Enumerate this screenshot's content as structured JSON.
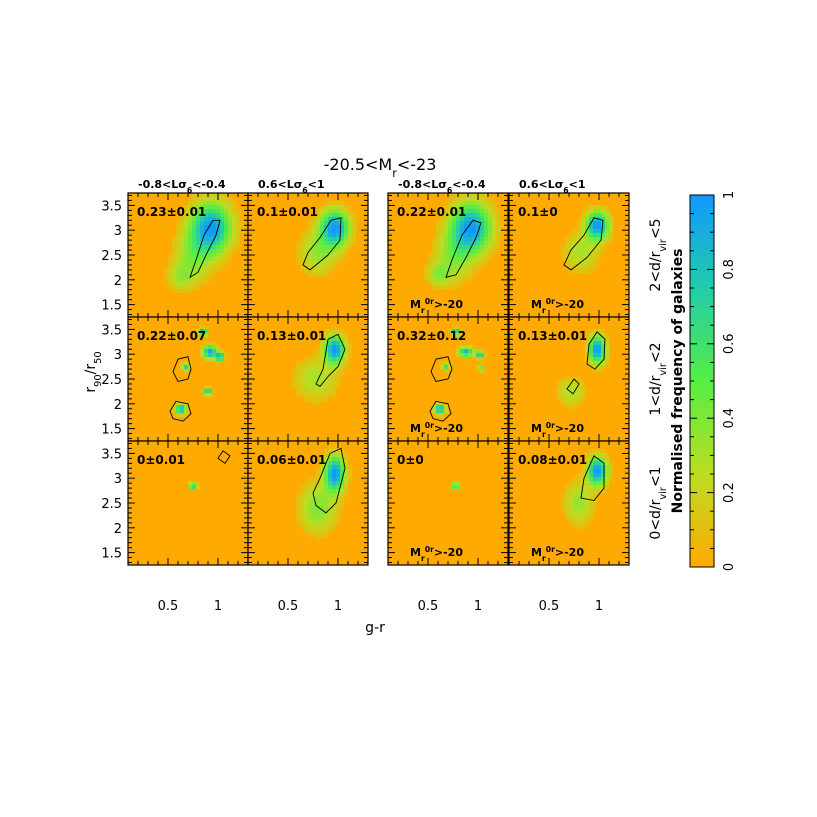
{
  "chart_data": {
    "type": "heatmap",
    "title": "-20.5<M_r<-23",
    "xlabel": "g-r",
    "ylabel": "r_90/r_50",
    "colorbar_label": "Normalised frequency of galaxies",
    "colorbar_ticks": [
      "0",
      "0.2",
      "0.4",
      "0.6",
      "0.8",
      "1"
    ],
    "colorbar_range": [
      0,
      1
    ],
    "colors": {
      "low": "#ffaa00",
      "mid": "#55ee44",
      "high": "#1199ff"
    },
    "xlim": [
      0.1,
      1.3
    ],
    "ylim": [
      1.25,
      3.75
    ],
    "xticks": [
      "0.5",
      "1"
    ],
    "yticks": [
      "1.5",
      "2",
      "2.5",
      "3",
      "3.5"
    ],
    "column_headers": [
      "-0.8<Lσ_6<-0.4",
      "0.6<Lσ_6<1",
      "-0.8<Lσ_6<-0.4",
      "0.6<Lσ_6<1"
    ],
    "row_labels": [
      "2<d/r_vir<5",
      "1<d/r_vir<2",
      "0<d/r_vir<1"
    ],
    "sample_label": "M_r^0r>-20",
    "panels": [
      {
        "row": 0,
        "col": 0,
        "fraction": "0.23±0.01",
        "sample_note": "",
        "blobs": [
          {
            "x": 0.93,
            "y": 3.05,
            "sx": 0.14,
            "sy": 0.35,
            "w": 1.0
          },
          {
            "x": 0.75,
            "y": 2.45,
            "sx": 0.13,
            "sy": 0.35,
            "w": 0.35
          },
          {
            "x": 0.62,
            "y": 2.05,
            "sx": 0.09,
            "sy": 0.18,
            "w": 0.25
          }
        ],
        "contour": [
          [
            0.72,
            2.05
          ],
          [
            0.78,
            2.4
          ],
          [
            0.86,
            2.9
          ],
          [
            0.95,
            3.2
          ],
          [
            1.02,
            3.2
          ],
          [
            0.98,
            2.9
          ],
          [
            0.88,
            2.5
          ],
          [
            0.8,
            2.15
          ]
        ]
      },
      {
        "row": 0,
        "col": 1,
        "fraction": "0.1±0.01",
        "sample_note": "",
        "blobs": [
          {
            "x": 0.97,
            "y": 3.05,
            "sx": 0.1,
            "sy": 0.25,
            "w": 1.0
          },
          {
            "x": 0.8,
            "y": 2.55,
            "sx": 0.13,
            "sy": 0.3,
            "w": 0.35
          }
        ],
        "contour": [
          [
            0.65,
            2.3
          ],
          [
            0.7,
            2.55
          ],
          [
            0.82,
            2.85
          ],
          [
            0.93,
            3.2
          ],
          [
            1.03,
            3.25
          ],
          [
            1.02,
            2.8
          ],
          [
            0.9,
            2.5
          ],
          [
            0.72,
            2.2
          ]
        ]
      },
      {
        "row": 0,
        "col": 2,
        "fraction": "0.22±0.01",
        "sample_note": "M_r^0r>-20",
        "blobs": [
          {
            "x": 0.93,
            "y": 3.05,
            "sx": 0.14,
            "sy": 0.35,
            "w": 1.0
          },
          {
            "x": 0.75,
            "y": 2.45,
            "sx": 0.13,
            "sy": 0.35,
            "w": 0.35
          },
          {
            "x": 0.6,
            "y": 2.1,
            "sx": 0.08,
            "sy": 0.15,
            "w": 0.3
          }
        ],
        "contour": [
          [
            0.68,
            2.05
          ],
          [
            0.74,
            2.4
          ],
          [
            0.84,
            2.9
          ],
          [
            0.95,
            3.2
          ],
          [
            1.03,
            3.15
          ],
          [
            0.98,
            2.85
          ],
          [
            0.88,
            2.45
          ],
          [
            0.78,
            2.1
          ]
        ]
      },
      {
        "row": 0,
        "col": 3,
        "fraction": "0.1±0",
        "sample_note": "M_r^0r>-20",
        "blobs": [
          {
            "x": 0.98,
            "y": 3.1,
            "sx": 0.08,
            "sy": 0.2,
            "w": 1.0
          },
          {
            "x": 0.82,
            "y": 2.55,
            "sx": 0.12,
            "sy": 0.28,
            "w": 0.3
          }
        ],
        "contour": [
          [
            0.65,
            2.3
          ],
          [
            0.72,
            2.6
          ],
          [
            0.85,
            2.9
          ],
          [
            0.95,
            3.25
          ],
          [
            1.04,
            3.2
          ],
          [
            1.02,
            2.8
          ],
          [
            0.88,
            2.45
          ],
          [
            0.72,
            2.2
          ]
        ]
      },
      {
        "row": 1,
        "col": 0,
        "fraction": "0.22±0.07",
        "sample_note": "",
        "blobs": [
          {
            "x": 0.92,
            "y": 3.05,
            "sx": 0.05,
            "sy": 0.09,
            "w": 0.95
          },
          {
            "x": 0.85,
            "y": 3.45,
            "sx": 0.03,
            "sy": 0.05,
            "w": 0.95
          },
          {
            "x": 1.02,
            "y": 2.95,
            "sx": 0.03,
            "sy": 0.06,
            "w": 0.9
          },
          {
            "x": 0.68,
            "y": 2.75,
            "sx": 0.03,
            "sy": 0.05,
            "w": 0.7
          },
          {
            "x": 0.9,
            "y": 2.25,
            "sx": 0.03,
            "sy": 0.05,
            "w": 0.8
          },
          {
            "x": 0.63,
            "y": 1.9,
            "sx": 0.04,
            "sy": 0.07,
            "w": 0.9
          }
        ],
        "contour": [
          [
            0.55,
            2.65
          ],
          [
            0.6,
            2.9
          ],
          [
            0.7,
            2.95
          ],
          [
            0.73,
            2.7
          ],
          [
            0.7,
            2.5
          ],
          [
            0.6,
            2.45
          ]
        ],
        "contour2": [
          [
            0.52,
            1.85
          ],
          [
            0.58,
            2.05
          ],
          [
            0.7,
            2.0
          ],
          [
            0.73,
            1.8
          ],
          [
            0.65,
            1.65
          ],
          [
            0.55,
            1.7
          ]
        ]
      },
      {
        "row": 1,
        "col": 1,
        "fraction": "0.13±0.01",
        "sample_note": "",
        "blobs": [
          {
            "x": 0.97,
            "y": 3.1,
            "sx": 0.07,
            "sy": 0.2,
            "w": 1.0
          },
          {
            "x": 0.78,
            "y": 2.5,
            "sx": 0.15,
            "sy": 0.3,
            "w": 0.3
          }
        ],
        "contour": [
          [
            0.78,
            2.4
          ],
          [
            0.85,
            2.7
          ],
          [
            0.9,
            3.3
          ],
          [
            1.0,
            3.4
          ],
          [
            1.07,
            3.1
          ],
          [
            1.0,
            2.75
          ],
          [
            0.9,
            2.55
          ],
          [
            0.82,
            2.35
          ]
        ]
      },
      {
        "row": 1,
        "col": 2,
        "fraction": "0.32±0.12",
        "sample_note": "M_r^0r>-20",
        "blobs": [
          {
            "x": 0.88,
            "y": 3.05,
            "sx": 0.05,
            "sy": 0.07,
            "w": 0.85
          },
          {
            "x": 0.78,
            "y": 3.45,
            "sx": 0.03,
            "sy": 0.05,
            "w": 0.9
          },
          {
            "x": 1.02,
            "y": 3.0,
            "sx": 0.03,
            "sy": 0.05,
            "w": 0.85
          },
          {
            "x": 1.03,
            "y": 2.72,
            "sx": 0.025,
            "sy": 0.04,
            "w": 0.5
          },
          {
            "x": 0.68,
            "y": 2.75,
            "sx": 0.03,
            "sy": 0.05,
            "w": 0.6
          },
          {
            "x": 0.62,
            "y": 1.9,
            "sx": 0.04,
            "sy": 0.07,
            "w": 0.9
          }
        ],
        "contour": [
          [
            0.53,
            2.65
          ],
          [
            0.58,
            2.9
          ],
          [
            0.7,
            2.95
          ],
          [
            0.74,
            2.7
          ],
          [
            0.7,
            2.5
          ],
          [
            0.58,
            2.45
          ]
        ],
        "contour2": [
          [
            0.52,
            1.85
          ],
          [
            0.58,
            2.05
          ],
          [
            0.7,
            2.0
          ],
          [
            0.73,
            1.8
          ],
          [
            0.65,
            1.65
          ],
          [
            0.55,
            1.7
          ]
        ]
      },
      {
        "row": 1,
        "col": 3,
        "fraction": "0.13±0.01",
        "sample_note": "M_r^0r>-20",
        "blobs": [
          {
            "x": 0.98,
            "y": 3.1,
            "sx": 0.06,
            "sy": 0.2,
            "w": 1.0
          },
          {
            "x": 0.72,
            "y": 2.25,
            "sx": 0.1,
            "sy": 0.2,
            "w": 0.3
          }
        ],
        "contour": [
          [
            0.88,
            2.8
          ],
          [
            0.9,
            3.2
          ],
          [
            0.98,
            3.45
          ],
          [
            1.06,
            3.3
          ],
          [
            1.05,
            2.9
          ],
          [
            0.96,
            2.7
          ]
        ],
        "contour2": [
          [
            0.68,
            2.3
          ],
          [
            0.75,
            2.5
          ],
          [
            0.8,
            2.4
          ],
          [
            0.74,
            2.2
          ]
        ]
      },
      {
        "row": 2,
        "col": 0,
        "fraction": "0±0.01",
        "sample_note": "",
        "blobs": [
          {
            "x": 0.75,
            "y": 2.85,
            "sx": 0.03,
            "sy": 0.05,
            "w": 0.75
          }
        ],
        "contour": [
          [
            1.0,
            3.4
          ],
          [
            1.05,
            3.55
          ],
          [
            1.12,
            3.45
          ],
          [
            1.07,
            3.3
          ]
        ]
      },
      {
        "row": 2,
        "col": 1,
        "fraction": "0.06±0.01",
        "sample_note": "",
        "blobs": [
          {
            "x": 0.97,
            "y": 3.1,
            "sx": 0.07,
            "sy": 0.25,
            "w": 1.0
          },
          {
            "x": 0.8,
            "y": 2.4,
            "sx": 0.13,
            "sy": 0.35,
            "w": 0.4
          }
        ],
        "contour": [
          [
            0.75,
            2.7
          ],
          [
            0.82,
            3.0
          ],
          [
            0.92,
            3.5
          ],
          [
            1.03,
            3.6
          ],
          [
            1.07,
            3.2
          ],
          [
            0.98,
            2.5
          ],
          [
            0.88,
            2.3
          ],
          [
            0.78,
            2.45
          ]
        ]
      },
      {
        "row": 2,
        "col": 2,
        "fraction": "0±0",
        "sample_note": "M_r^0r>-20",
        "blobs": [
          {
            "x": 0.78,
            "y": 2.85,
            "sx": 0.03,
            "sy": 0.05,
            "w": 0.7
          }
        ],
        "contour": []
      },
      {
        "row": 2,
        "col": 3,
        "fraction": "0.08±0.01",
        "sample_note": "M_r^0r>-20",
        "blobs": [
          {
            "x": 0.98,
            "y": 3.15,
            "sx": 0.07,
            "sy": 0.2,
            "w": 1.0
          },
          {
            "x": 0.8,
            "y": 2.5,
            "sx": 0.1,
            "sy": 0.3,
            "w": 0.35
          }
        ],
        "contour": [
          [
            0.82,
            2.6
          ],
          [
            0.85,
            3.0
          ],
          [
            0.95,
            3.45
          ],
          [
            1.05,
            3.3
          ],
          [
            1.05,
            2.8
          ],
          [
            0.95,
            2.55
          ]
        ]
      }
    ]
  }
}
